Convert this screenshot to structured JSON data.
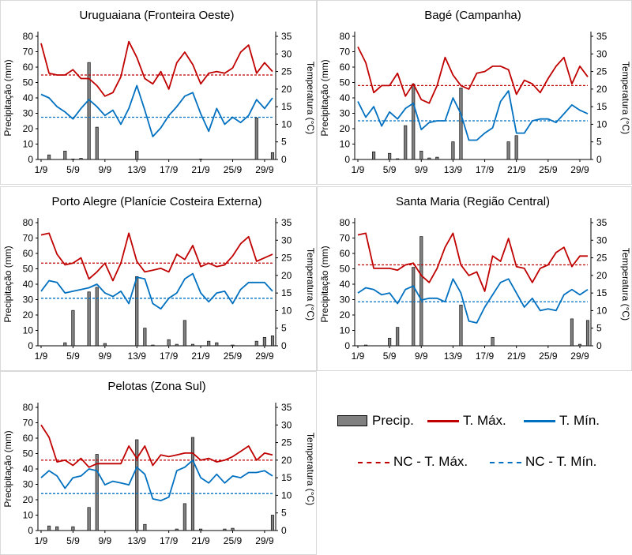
{
  "chart_data": [
    {
      "type": "bar+line",
      "title": "Uruguaiana (Fronteira Oeste)",
      "ylabel": "Precipitação (mm)",
      "y2label": "Temperatura (°C)",
      "ylim": [
        0,
        80
      ],
      "y2lim": [
        0,
        35
      ],
      "yticks": [
        "0",
        "10",
        "20",
        "30",
        "40",
        "50",
        "60",
        "70",
        "80"
      ],
      "y2ticks": [
        "0",
        "5",
        "10",
        "15",
        "20",
        "25",
        "30",
        "35"
      ],
      "xticks": [
        "1/9",
        "5/9",
        "9/9",
        "13/9",
        "17/9",
        "21/9",
        "25/9",
        "29/9"
      ],
      "x": [
        1,
        2,
        3,
        4,
        5,
        6,
        7,
        8,
        9,
        10,
        11,
        12,
        13,
        14,
        15,
        16,
        17,
        18,
        19,
        20,
        21,
        22,
        23,
        24,
        25,
        26,
        27,
        28,
        29,
        30
      ],
      "precip": [
        0,
        3,
        0,
        5.5,
        0.3,
        0.8,
        63,
        21,
        0,
        0,
        0,
        0,
        5.5,
        0,
        0,
        0,
        0,
        0,
        0,
        0,
        0.3,
        0,
        0,
        0,
        0,
        0,
        0,
        27,
        0,
        4.5
      ],
      "tmax": [
        33,
        24.5,
        24,
        24,
        25.5,
        23,
        23,
        21,
        18,
        19,
        23.5,
        33.5,
        29,
        23,
        21.5,
        25,
        20,
        27.5,
        30.5,
        27,
        21.5,
        24.5,
        25,
        24.5,
        26,
        30.5,
        32.5,
        24.5,
        27.5,
        25
      ],
      "tmin": [
        18.5,
        17.5,
        15,
        13.5,
        11.5,
        14.5,
        17,
        15,
        12.5,
        14,
        10,
        14.5,
        21,
        14,
        6.5,
        9,
        12.5,
        15,
        18,
        19,
        13,
        8,
        14.5,
        10,
        12,
        10.5,
        12.5,
        17,
        14.5,
        17.5
      ],
      "nc_tmax": 24,
      "nc_tmin": 12
    },
    {
      "type": "bar+line",
      "title": "Bagé (Campanha)",
      "ylabel": "Precipitação (mm)",
      "y2label": "Temperatura (°C)",
      "ylim": [
        0,
        80
      ],
      "y2lim": [
        0,
        35
      ],
      "yticks": [
        "0",
        "10",
        "20",
        "30",
        "40",
        "50",
        "60",
        "70",
        "80"
      ],
      "y2ticks": [
        "0",
        "5",
        "10",
        "15",
        "20",
        "25",
        "30",
        "35"
      ],
      "xticks": [
        "1/9",
        "5/9",
        "9/9",
        "13/9",
        "17/9",
        "21/9",
        "25/9",
        "29/9"
      ],
      "x": [
        1,
        2,
        3,
        4,
        5,
        6,
        7,
        8,
        9,
        10,
        11,
        12,
        13,
        14,
        15,
        16,
        17,
        18,
        19,
        20,
        21,
        22,
        23,
        24,
        25,
        26,
        27,
        28,
        29,
        30
      ],
      "precip": [
        0,
        0,
        5,
        0,
        4,
        0.5,
        22,
        49,
        5.5,
        1,
        1.5,
        0,
        11.5,
        46.5,
        0,
        0,
        0,
        0,
        0,
        11.5,
        15.5,
        0,
        0,
        0,
        0,
        0,
        0,
        0,
        0,
        0
      ],
      "tmax": [
        32,
        27.5,
        19,
        21,
        21,
        24.5,
        18,
        21.5,
        17,
        16,
        21,
        29,
        24,
        21,
        20,
        24.5,
        25,
        26.5,
        26.5,
        25.5,
        18.5,
        22.5,
        21.5,
        19,
        23,
        26.5,
        29,
        21.5,
        26.5,
        23.5
      ],
      "tmin": [
        16.5,
        12,
        15,
        9.5,
        13.5,
        11.5,
        14.5,
        16,
        8.5,
        10.5,
        11,
        11,
        17.5,
        13,
        5.5,
        5.5,
        7.5,
        9,
        16.5,
        19.5,
        7.5,
        7.5,
        11,
        11.5,
        11.5,
        10.5,
        13,
        15.5,
        14,
        13
      ],
      "nc_tmax": 21,
      "nc_tmin": 11
    },
    {
      "type": "bar+line",
      "title": "Porto Alegre (Planície Costeira Externa)",
      "ylabel": "Precipitação (mm)",
      "y2label": "Temperatura (°C)",
      "ylim": [
        0,
        80
      ],
      "y2lim": [
        0,
        35
      ],
      "yticks": [
        "0",
        "10",
        "20",
        "30",
        "40",
        "50",
        "60",
        "70",
        "80"
      ],
      "y2ticks": [
        "0",
        "5",
        "10",
        "15",
        "20",
        "25",
        "30",
        "35"
      ],
      "xticks": [
        "1/9",
        "5/9",
        "9/9",
        "13/9",
        "17/9",
        "21/9",
        "25/9",
        "29/9"
      ],
      "x": [
        1,
        2,
        3,
        4,
        5,
        6,
        7,
        8,
        9,
        10,
        11,
        12,
        13,
        14,
        15,
        16,
        17,
        18,
        19,
        20,
        21,
        22,
        23,
        24,
        25,
        26,
        27,
        28,
        29,
        30
      ],
      "precip": [
        0,
        0,
        0,
        2,
        23,
        0,
        35,
        38,
        1.5,
        0,
        0,
        0,
        45,
        11.5,
        0.5,
        0,
        4,
        1,
        16.5,
        1,
        0,
        3,
        2,
        0,
        0.5,
        0,
        0,
        3,
        5.5,
        6.5
      ],
      "tmax": [
        31.5,
        32,
        26,
        23,
        23.5,
        25,
        19,
        21,
        23.5,
        18.5,
        23.5,
        32,
        24,
        21,
        21.5,
        22,
        21,
        26,
        24.5,
        28.5,
        22.5,
        23.5,
        22.5,
        23,
        25.5,
        29,
        31,
        24,
        25,
        26
      ],
      "tmin": [
        15.5,
        18.5,
        18,
        15,
        15.5,
        16,
        16.5,
        17.5,
        15,
        14,
        15.5,
        12,
        19.5,
        19,
        12,
        10.5,
        13.5,
        15,
        19,
        20.5,
        15,
        12.5,
        15,
        15.5,
        12,
        16,
        18,
        18,
        18,
        15.5
      ],
      "nc_tmax": 23.5,
      "nc_tmin": 13.5
    },
    {
      "type": "bar+line",
      "title": "Santa Maria (Região Central)",
      "ylabel": "Precipitação (mm)",
      "y2label": "Temperatura (°C)",
      "ylim": [
        0,
        80
      ],
      "y2lim": [
        0,
        35
      ],
      "yticks": [
        "0",
        "10",
        "20",
        "30",
        "40",
        "50",
        "60",
        "70",
        "80"
      ],
      "y2ticks": [
        "0",
        "5",
        "10",
        "15",
        "20",
        "25",
        "30",
        "35"
      ],
      "xticks": [
        "1/9",
        "5/9",
        "9/9",
        "13/9",
        "17/9",
        "21/9",
        "25/9",
        "29/9"
      ],
      "x": [
        1,
        2,
        3,
        4,
        5,
        6,
        7,
        8,
        9,
        10,
        11,
        12,
        13,
        14,
        15,
        16,
        17,
        18,
        19,
        20,
        21,
        22,
        23,
        24,
        25,
        26,
        27,
        28,
        29,
        30
      ],
      "precip": [
        0,
        0.5,
        0,
        0,
        5,
        12,
        0,
        51,
        71,
        0,
        0,
        0,
        0,
        26.5,
        0,
        0,
        0,
        5.5,
        0,
        0,
        0,
        0,
        0,
        0,
        0,
        0,
        0,
        17.5,
        1,
        16.5
      ],
      "tmax": [
        31.5,
        32,
        22,
        22,
        22,
        21.5,
        23,
        23.5,
        20,
        18,
        22,
        28,
        32,
        23,
        20,
        21,
        15.5,
        25.5,
        24,
        30.5,
        22.5,
        22,
        18,
        22,
        23,
        26.5,
        28,
        22.5,
        25.5,
        25.5
      ],
      "tmin": [
        15,
        16.5,
        16,
        14.5,
        15,
        12,
        16,
        17,
        13,
        13.5,
        13.5,
        12.5,
        19,
        15,
        7,
        6.5,
        11,
        14.5,
        18,
        19,
        15,
        11,
        13.5,
        10,
        10.5,
        10,
        14.5,
        16,
        14.5,
        16
      ],
      "nc_tmax": 23,
      "nc_tmin": 12.5
    },
    {
      "type": "bar+line",
      "title": "Pelotas (Zona Sul)",
      "ylabel": "Precipitação (mm)",
      "y2label": "Temperatura (°C)",
      "ylim": [
        0,
        80
      ],
      "y2lim": [
        0,
        35
      ],
      "yticks": [
        "0",
        "10",
        "20",
        "30",
        "40",
        "50",
        "60",
        "70",
        "80"
      ],
      "y2ticks": [
        "0",
        "5",
        "10",
        "15",
        "20",
        "25",
        "30",
        "35"
      ],
      "xticks": [
        "1/9",
        "5/9",
        "9/9",
        "13/9",
        "17/9",
        "21/9",
        "25/9",
        "29/9"
      ],
      "x": [
        1,
        2,
        3,
        4,
        5,
        6,
        7,
        8,
        9,
        10,
        11,
        12,
        13,
        14,
        15,
        16,
        17,
        18,
        19,
        20,
        21,
        22,
        23,
        24,
        25,
        26,
        27,
        28,
        29,
        30
      ],
      "precip": [
        0,
        3,
        2.5,
        0,
        2.5,
        0,
        15,
        49.5,
        0,
        0,
        0,
        0,
        59,
        4,
        0,
        0,
        0,
        1,
        17.5,
        60.5,
        1,
        0,
        0,
        1,
        1.5,
        0,
        0,
        0,
        0,
        10
      ],
      "tmax": [
        30,
        26.5,
        19.5,
        20,
        18.5,
        20.5,
        18,
        19,
        19,
        19,
        19,
        24,
        20.5,
        24,
        18.5,
        21.5,
        21,
        21.5,
        22,
        22,
        20,
        20.5,
        19.5,
        20,
        21,
        22.5,
        24,
        20,
        22,
        21.5
      ],
      "tmin": [
        15,
        17,
        15.5,
        12,
        15,
        15.5,
        17.5,
        17,
        13,
        14,
        13.5,
        13,
        18,
        16,
        9,
        8.5,
        9.5,
        17,
        18,
        20,
        15,
        13.5,
        16,
        13.5,
        15.5,
        15,
        16.5,
        16.5,
        17,
        15.5
      ],
      "nc_tmax": 20,
      "nc_tmin": 10.5
    }
  ],
  "legend": {
    "precip": "Precip.",
    "tmax": "T. Máx.",
    "tmin": "T. Mín.",
    "nc_tmax": "NC - T. Máx.",
    "nc_tmin": "NC - T. Mín."
  },
  "colors": {
    "precip_fill": "#808080",
    "tmax": "#c00000",
    "tmin": "#0070c0",
    "text": "#000000",
    "border": "#d9d9d9"
  }
}
